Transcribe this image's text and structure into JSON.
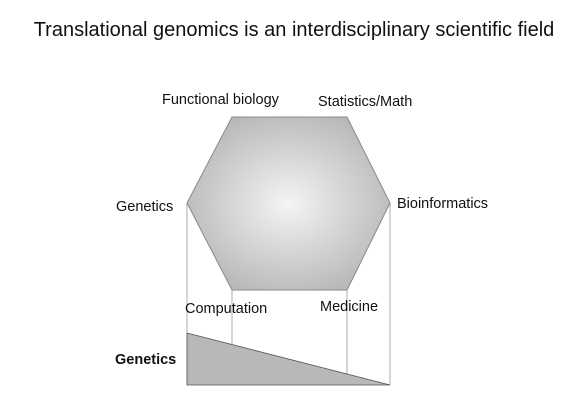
{
  "title": "Translational genomics is an interdisciplinary scientific field",
  "hexagon": {
    "fill_center": "#f4f4f4",
    "fill_edge": "#b3b3b3",
    "stroke": "#8a8a8a",
    "vertices": [
      "Functional biology",
      "Statistics/Math",
      "Bioinformatics",
      "Medicine",
      "Computation",
      "Genetics"
    ]
  },
  "projection": {
    "label": "Genetics",
    "fill": "#b8b8b8"
  }
}
